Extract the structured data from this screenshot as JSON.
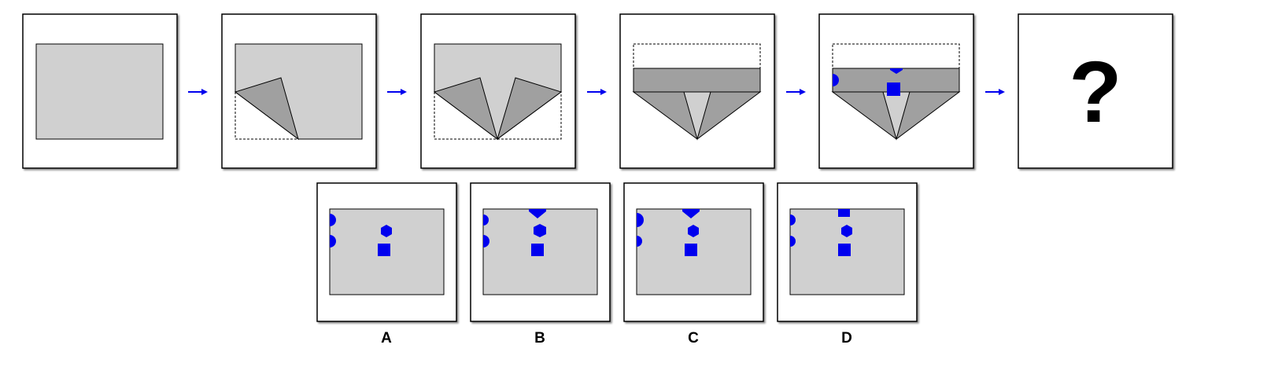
{
  "colors": {
    "paper": "#d0d0d0",
    "fold": "#a0a0a0",
    "shape": "#0000ee",
    "arrow": "#0000ee",
    "frame": "#000000"
  },
  "sequence": {
    "question_mark": "?",
    "steps": [
      {
        "name": "step-1-flat-paper"
      },
      {
        "name": "step-2-fold-bottom-left"
      },
      {
        "name": "step-3-fold-bottom-right"
      },
      {
        "name": "step-4-fold-top-down"
      },
      {
        "name": "step-5-punched-shapes"
      },
      {
        "name": "step-6-unknown"
      }
    ]
  },
  "options": [
    {
      "label": "A"
    },
    {
      "label": "B"
    },
    {
      "label": "C"
    },
    {
      "label": "D"
    }
  ]
}
